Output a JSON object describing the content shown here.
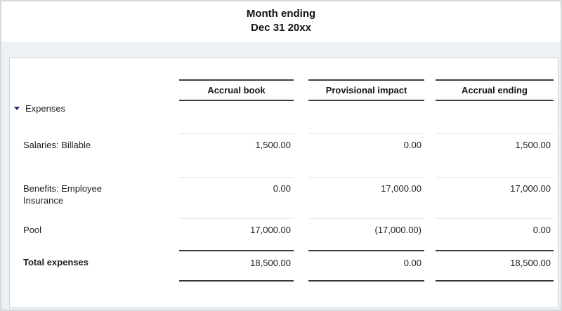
{
  "report_header": {
    "period_line1": "Month ending",
    "period_line2": "Dec 31 20xx"
  },
  "table": {
    "columns": [
      {
        "label": "Accrual book"
      },
      {
        "label": "Provisional impact"
      },
      {
        "label": "Accrual ending"
      }
    ],
    "group_row": {
      "label": "Expenses",
      "icon": "triangle-down-collapse-icon"
    },
    "rows": [
      {
        "label": "Salaries: Billable",
        "values": [
          "1,500.00",
          "0.00",
          "1,500.00"
        ]
      },
      {
        "label": "Benefits: Employee Insurance",
        "values": [
          "0.00",
          "17,000.00",
          "17,000.00"
        ]
      },
      {
        "label": "Pool",
        "values": [
          "17,000.00",
          "(17,000.00)",
          "0.00"
        ]
      }
    ],
    "total_row": {
      "label": "Total expenses",
      "values": [
        "18,500.00",
        "0.00",
        "18,500.00"
      ]
    }
  },
  "colors": {
    "band_background": "#edf1f4",
    "card_border": "#ccd5da",
    "rule_dark": "#3c4043",
    "rule_light": "#e3e6e9",
    "expand_triangle": "#232a66"
  }
}
